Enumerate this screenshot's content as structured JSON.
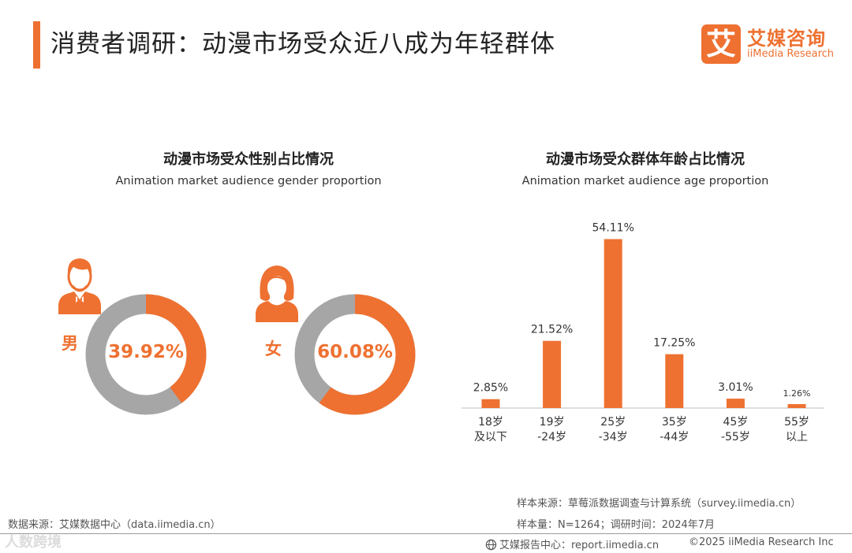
{
  "header": {
    "title": "消费者调研：动漫市场受众近八成为年轻群体",
    "logo_mark": "艾",
    "logo_cn": "艾媒咨询",
    "logo_en": "iiMedia Research"
  },
  "gender_chart": {
    "title": "动漫市场受众性别占比情况",
    "subtitle": "Animation market audience gender proportion",
    "male": {
      "label": "男",
      "value_text": "39.92%",
      "value": 39.92
    },
    "female": {
      "label": "女",
      "value_text": "60.08%",
      "value": 60.08
    }
  },
  "chart_data": [
    {
      "type": "pie",
      "title": "动漫市场受众性别占比情况",
      "subtitle": "Animation market audience gender proportion",
      "categories": [
        "男",
        "女"
      ],
      "values": [
        39.92,
        60.08
      ],
      "unit": "%"
    },
    {
      "type": "bar",
      "title": "动漫市场受众群体年龄占比情况",
      "subtitle": "Animation market audience age proportion",
      "categories": [
        [
          "18岁",
          "及以下"
        ],
        [
          "19岁",
          "-24岁"
        ],
        [
          "25岁",
          "-34岁"
        ],
        [
          "35岁",
          "-44岁"
        ],
        [
          "45岁",
          "-55岁"
        ],
        [
          "55岁",
          "以上"
        ]
      ],
      "values": [
        2.85,
        21.52,
        54.11,
        17.25,
        3.01,
        1.26
      ],
      "labels": [
        "2.85%",
        "21.52%",
        "54.11%",
        "17.25%",
        "3.01%",
        "1.26%"
      ],
      "xlabel": "",
      "ylabel": "",
      "ylim": [
        0,
        55
      ]
    }
  ],
  "notes": {
    "source_left": "数据来源：艾媒数据中心（data.iimedia.cn）",
    "sample_source": "样本来源：草莓派数据调查与计算系统（survey.iimedia.cn）",
    "sample_size": "样本量：N=1264；调研时间：2024年7月"
  },
  "footer": {
    "report_center": "艾媒报告中心：report.iimedia.cn",
    "copyright": "©2025  iiMedia Research  Inc",
    "watermark": "人数跨境"
  },
  "colors": {
    "accent": "#ee7131",
    "gray": "#a6a6a6",
    "axis": "#bfbfbf"
  }
}
